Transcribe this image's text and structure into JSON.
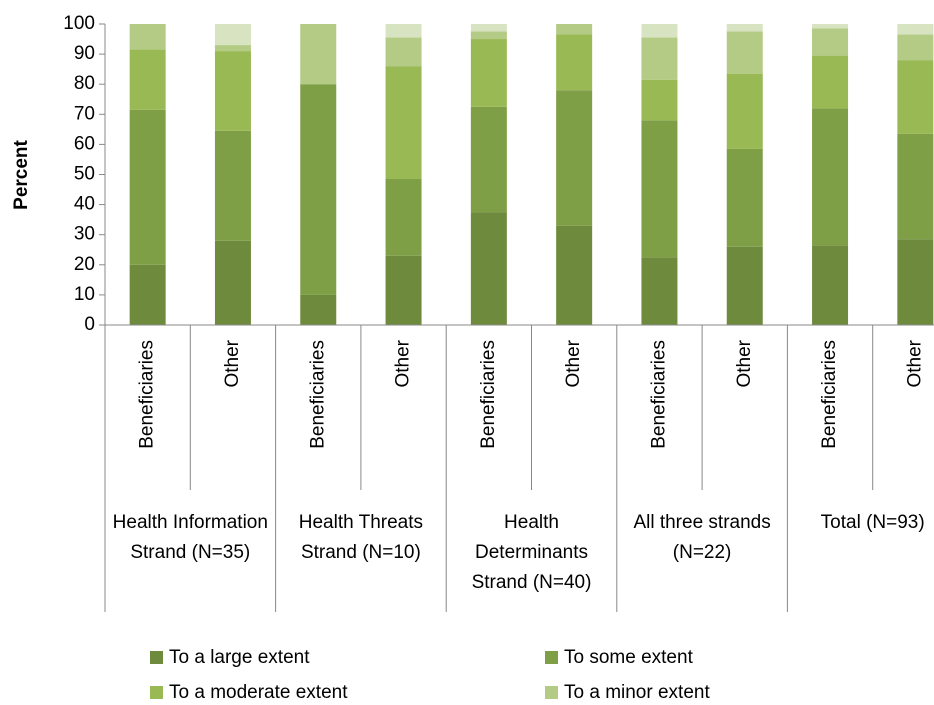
{
  "chart_data": {
    "type": "stacked_bar",
    "y_label": "Percent",
    "categories": [
      "Beneficiaries",
      "Other",
      "Beneficiaries",
      "Other",
      "Beneficiaries",
      "Other",
      "Beneficiaries",
      "Other",
      "Beneficiaries",
      "Other"
    ],
    "groups": [
      "Health Information Strand (N=35)",
      "Health Threats Strand (N=10)",
      "Health Determinants Strand (N=40)",
      "All three strands (N=22)",
      "Total (N=93)"
    ],
    "series": [
      {
        "name": "To a large extent",
        "color": "#6e8b3d",
        "values": [
          20,
          28,
          10,
          23,
          37.5,
          33,
          22.5,
          26,
          26.5,
          28.5
        ]
      },
      {
        "name": "To some extent",
        "color": "#7f9f46",
        "values": [
          51.5,
          36.5,
          70,
          25.5,
          35,
          45,
          45.5,
          32.5,
          45.5,
          35
        ]
      },
      {
        "name": "To a moderate extent",
        "color": "#99b955",
        "values": [
          20,
          26.5,
          0,
          37.5,
          22.5,
          18.5,
          13.5,
          25,
          17.5,
          24.5
        ]
      },
      {
        "name": "To a minor extent",
        "color": "#b3cb84",
        "values": [
          8.5,
          2,
          20,
          9.5,
          2.5,
          3.5,
          14,
          14,
          9,
          8.5
        ]
      },
      {
        "color": "#d8e3c2",
        "values": [
          0,
          7,
          0,
          4.5,
          2.5,
          0,
          4.5,
          2.5,
          1.5,
          3.5
        ]
      }
    ],
    "ylim": [
      0,
      100
    ],
    "yticks": [
      0,
      10,
      20,
      30,
      40,
      50,
      60,
      70,
      80,
      90,
      100
    ],
    "legend": "bottom"
  }
}
